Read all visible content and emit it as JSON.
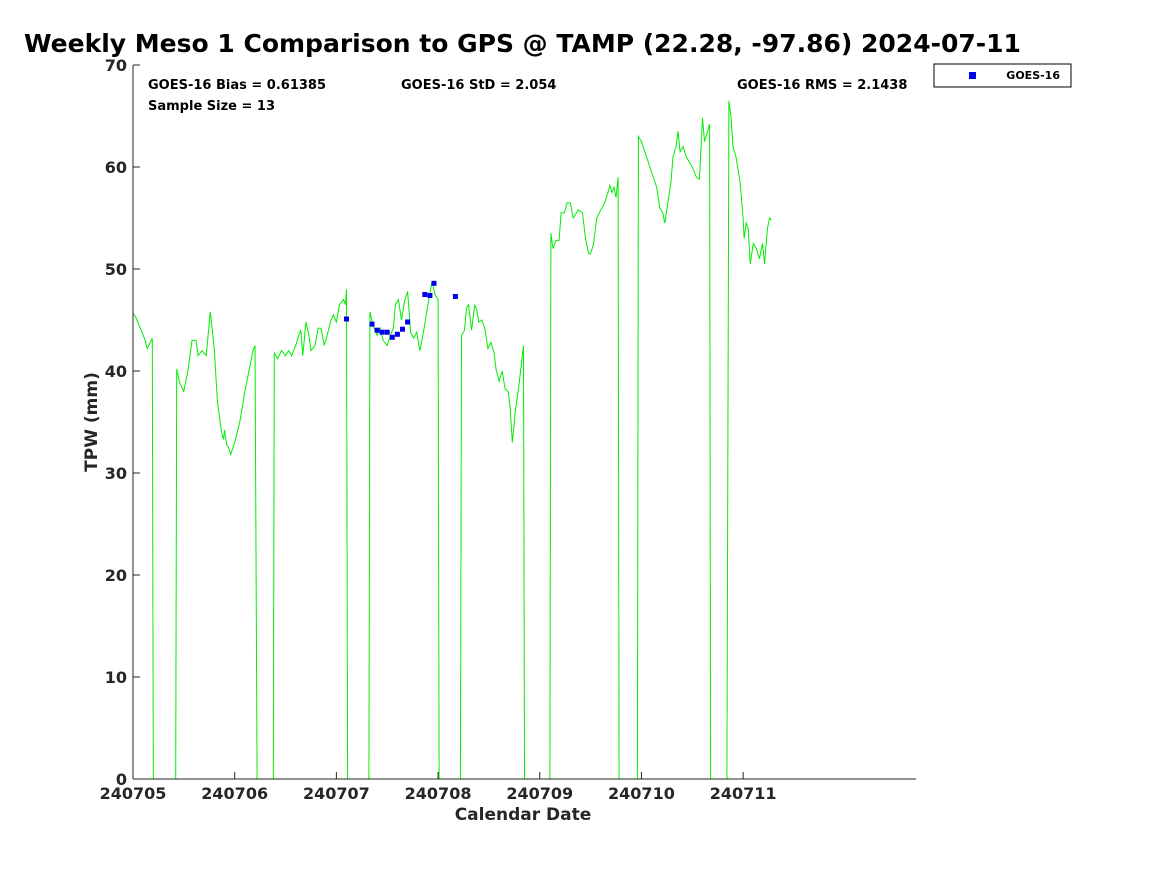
{
  "chart_data": {
    "type": "line",
    "title": "Weekly Meso 1 Comparison to GPS @ TAMP (22.28, -97.86) 2024-07-11",
    "xlabel": "Calendar Date",
    "ylabel": "TPW (mm)",
    "xlim": [
      240705,
      240712.7
    ],
    "ylim": [
      0,
      70
    ],
    "x_ticks": [
      "240705",
      "240706",
      "240707",
      "240708",
      "240709",
      "240710",
      "240711"
    ],
    "y_ticks": [
      "0",
      "10",
      "20",
      "30",
      "40",
      "50",
      "60",
      "70"
    ],
    "grid": false,
    "legend_position": "outside-top-right",
    "stats": {
      "bias": "GOES-16 Bias = 0.61385",
      "std": "GOES-16 StD = 2.054",
      "rms": "GOES-16 RMS = 2.1438",
      "sample": "Sample Size = 13"
    },
    "colors": {
      "gps_line": "#00ee00",
      "goes": "#0000ee"
    },
    "gps_series": {
      "color": "#00ee00",
      "points": [
        [
          240705.0,
          45.7
        ],
        [
          240705.03,
          45.2
        ],
        [
          240705.08,
          44.0
        ],
        [
          240705.12,
          43.0
        ],
        [
          240705.14,
          42.2
        ],
        [
          240705.17,
          42.8
        ],
        [
          240705.19,
          43.2
        ],
        [
          240705.2,
          0
        ],
        [
          240705.42,
          0
        ],
        [
          240705.43,
          40.2
        ],
        [
          240705.46,
          38.8
        ],
        [
          240705.5,
          38.0
        ],
        [
          240705.54,
          40.0
        ],
        [
          240705.58,
          43.0
        ],
        [
          240705.62,
          43.0
        ],
        [
          240705.64,
          41.5
        ],
        [
          240705.68,
          42.0
        ],
        [
          240705.72,
          41.5
        ],
        [
          240705.76,
          45.8
        ],
        [
          240705.8,
          42.0
        ],
        [
          240705.83,
          37.0
        ],
        [
          240705.87,
          34.0
        ],
        [
          240705.89,
          33.3
        ],
        [
          240705.9,
          34.2
        ],
        [
          240705.92,
          32.8
        ],
        [
          240705.94,
          32.5
        ],
        [
          240705.96,
          31.8
        ],
        [
          240706.0,
          33.0
        ],
        [
          240706.05,
          35.0
        ],
        [
          240706.1,
          38.0
        ],
        [
          240706.14,
          40.0
        ],
        [
          240706.18,
          42.0
        ],
        [
          240706.2,
          42.5
        ],
        [
          240706.22,
          0
        ],
        [
          240706.38,
          0
        ],
        [
          240706.39,
          41.8
        ],
        [
          240706.42,
          41.2
        ],
        [
          240706.46,
          42.0
        ],
        [
          240706.5,
          41.5
        ],
        [
          240706.53,
          42.0
        ],
        [
          240706.56,
          41.5
        ],
        [
          240706.6,
          42.5
        ],
        [
          240706.63,
          43.5
        ],
        [
          240706.65,
          44.0
        ],
        [
          240706.67,
          41.5
        ],
        [
          240706.7,
          44.8
        ],
        [
          240706.73,
          43.5
        ],
        [
          240706.75,
          42.0
        ],
        [
          240706.79,
          42.5
        ],
        [
          240706.82,
          44.2
        ],
        [
          240706.85,
          44.2
        ],
        [
          240706.88,
          42.5
        ],
        [
          240706.91,
          43.5
        ],
        [
          240706.94,
          44.8
        ],
        [
          240706.97,
          45.5
        ],
        [
          240707.0,
          44.8
        ],
        [
          240707.03,
          46.5
        ],
        [
          240707.07,
          47.0
        ],
        [
          240707.09,
          46.5
        ],
        [
          240707.1,
          48.0
        ],
        [
          240707.11,
          0
        ],
        [
          240707.32,
          0
        ],
        [
          240707.33,
          45.8
        ],
        [
          240707.36,
          44.5
        ],
        [
          240707.4,
          43.5
        ],
        [
          240707.43,
          44.2
        ],
        [
          240707.46,
          43.0
        ],
        [
          240707.5,
          42.5
        ],
        [
          240707.53,
          43.5
        ],
        [
          240707.56,
          44.2
        ],
        [
          240707.58,
          46.5
        ],
        [
          240707.61,
          47.0
        ],
        [
          240707.64,
          45.0
        ],
        [
          240707.67,
          46.8
        ],
        [
          240707.7,
          47.8
        ],
        [
          240707.73,
          43.8
        ],
        [
          240707.76,
          43.2
        ],
        [
          240707.79,
          43.8
        ],
        [
          240707.82,
          42.0
        ],
        [
          240707.86,
          44.0
        ],
        [
          240707.9,
          46.5
        ],
        [
          240707.94,
          48.8
        ],
        [
          240707.97,
          47.5
        ],
        [
          240708.0,
          47.0
        ],
        [
          240708.01,
          0
        ],
        [
          240708.22,
          0
        ],
        [
          240708.23,
          43.5
        ],
        [
          240708.26,
          44.0
        ],
        [
          240708.28,
          46.2
        ],
        [
          240708.3,
          46.5
        ],
        [
          240708.33,
          44.0
        ],
        [
          240708.36,
          46.5
        ],
        [
          240708.38,
          46.0
        ],
        [
          240708.4,
          44.8
        ],
        [
          240708.43,
          45.0
        ],
        [
          240708.46,
          44.2
        ],
        [
          240708.49,
          42.2
        ],
        [
          240708.52,
          42.8
        ],
        [
          240708.55,
          41.8
        ],
        [
          240708.57,
          40.2
        ],
        [
          240708.6,
          39.0
        ],
        [
          240708.63,
          40.0
        ],
        [
          240708.66,
          38.2
        ],
        [
          240708.69,
          38.0
        ],
        [
          240708.71,
          36.2
        ],
        [
          240708.73,
          33.0
        ],
        [
          240708.76,
          36.0
        ],
        [
          240708.8,
          39.0
        ],
        [
          240708.84,
          42.5
        ],
        [
          240708.85,
          0
        ],
        [
          240709.1,
          0
        ],
        [
          240709.11,
          53.5
        ],
        [
          240709.13,
          52.0
        ],
        [
          240709.16,
          52.8
        ],
        [
          240709.19,
          52.8
        ],
        [
          240709.21,
          55.5
        ],
        [
          240709.24,
          55.5
        ],
        [
          240709.27,
          56.5
        ],
        [
          240709.3,
          56.5
        ],
        [
          240709.33,
          55.0
        ],
        [
          240709.36,
          55.5
        ],
        [
          240709.38,
          55.8
        ],
        [
          240709.42,
          55.5
        ],
        [
          240709.45,
          53.0
        ],
        [
          240709.48,
          51.5
        ],
        [
          240709.5,
          51.5
        ],
        [
          240709.53,
          52.5
        ],
        [
          240709.56,
          55.0
        ],
        [
          240709.6,
          55.8
        ],
        [
          240709.64,
          56.5
        ],
        [
          240709.67,
          57.5
        ],
        [
          240709.69,
          58.2
        ],
        [
          240709.71,
          57.5
        ],
        [
          240709.73,
          58.0
        ],
        [
          240709.75,
          57.0
        ],
        [
          240709.77,
          59.0
        ],
        [
          240709.78,
          0
        ],
        [
          240709.96,
          0
        ],
        [
          240709.97,
          63.0
        ],
        [
          240710.0,
          62.5
        ],
        [
          240710.05,
          61.0
        ],
        [
          240710.1,
          59.5
        ],
        [
          240710.15,
          58.0
        ],
        [
          240710.18,
          56.0
        ],
        [
          240710.21,
          55.5
        ],
        [
          240710.23,
          54.5
        ],
        [
          240710.26,
          56.5
        ],
        [
          240710.29,
          58.5
        ],
        [
          240710.31,
          61.0
        ],
        [
          240710.34,
          62.0
        ],
        [
          240710.36,
          63.5
        ],
        [
          240710.38,
          61.5
        ],
        [
          240710.41,
          62.0
        ],
        [
          240710.44,
          61.0
        ],
        [
          240710.47,
          60.5
        ],
        [
          240710.5,
          60.0
        ],
        [
          240710.54,
          59.0
        ],
        [
          240710.57,
          58.8
        ],
        [
          240710.6,
          64.8
        ],
        [
          240710.62,
          62.5
        ],
        [
          240710.65,
          63.5
        ],
        [
          240710.67,
          64.2
        ],
        [
          240710.68,
          0
        ],
        [
          240710.84,
          0
        ],
        [
          240710.86,
          66.5
        ],
        [
          240710.88,
          65.0
        ],
        [
          240710.9,
          62.0
        ],
        [
          240710.93,
          61.0
        ],
        [
          240710.97,
          58.5
        ],
        [
          240711.0,
          55.0
        ],
        [
          240711.01,
          53.0
        ],
        [
          240711.03,
          54.5
        ],
        [
          240711.05,
          54.0
        ],
        [
          240711.07,
          50.5
        ],
        [
          240711.1,
          52.5
        ],
        [
          240711.13,
          52.0
        ],
        [
          240711.16,
          51.0
        ],
        [
          240711.19,
          52.5
        ],
        [
          240711.21,
          50.5
        ],
        [
          240711.24,
          54.0
        ],
        [
          240711.26,
          55.0
        ],
        [
          240711.28,
          54.8
        ]
      ]
    },
    "series": [
      {
        "name": "GOES-16",
        "marker": "square",
        "points": [
          [
            240707.1,
            45.1
          ],
          [
            240707.35,
            44.6
          ],
          [
            240707.4,
            44.0
          ],
          [
            240707.45,
            43.8
          ],
          [
            240707.5,
            43.8
          ],
          [
            240707.55,
            43.3
          ],
          [
            240707.6,
            43.6
          ],
          [
            240707.65,
            44.1
          ],
          [
            240707.7,
            44.8
          ],
          [
            240707.87,
            47.5
          ],
          [
            240707.92,
            47.4
          ],
          [
            240707.96,
            48.6
          ],
          [
            240708.17,
            47.3
          ]
        ]
      }
    ]
  }
}
